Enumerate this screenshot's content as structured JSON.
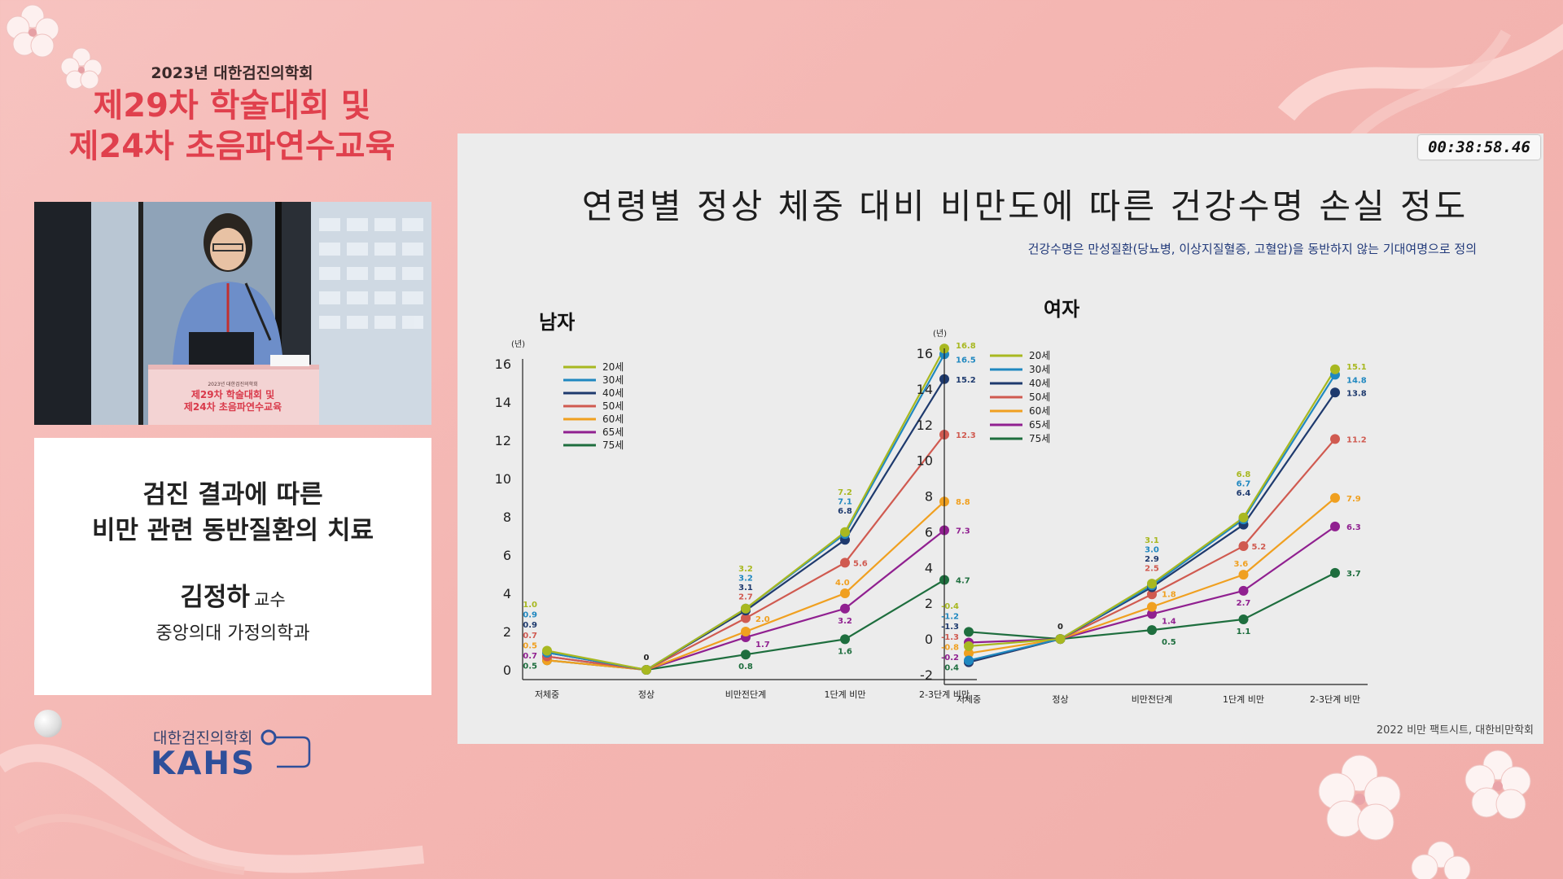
{
  "conference": {
    "year_line": "2023년 대한검진의학회",
    "title_line1": "제29차 학술대회 및",
    "title_line2": "제24차 초음파연수교육"
  },
  "video": {
    "podium_line1": "2023년 대한검진의학회",
    "podium_line2": "제29차 학술대회 및",
    "podium_line3": "제24차 초음파연수교육"
  },
  "talk": {
    "title_line1": "검진 결과에 따른",
    "title_line2": "비만 관련 동반질환의 치료",
    "speaker_name": "김정하",
    "speaker_role": "교수",
    "speaker_dept": "중앙의대 가정의학과"
  },
  "logo": {
    "korean": "대한검진의학회",
    "english": "KAHS"
  },
  "timer": "00:38:58.46",
  "slide": {
    "title": "연령별 정상 체중 대비 비만도에 따른 건강수명 손실 정도",
    "note": "건강수명은 만성질환(당뇨병, 이상지질혈증, 고혈압)을 동반하지 않는 기대여명으로 정의",
    "source": "2022 비만 팩트시트, 대한비만학회"
  },
  "colors": {
    "20세": "#a8b820",
    "30세": "#2088c0",
    "40세": "#1e3a6e",
    "50세": "#d05a50",
    "60세": "#f0a020",
    "65세": "#902090",
    "75세": "#1e6e3e"
  },
  "chart_data": [
    {
      "type": "line",
      "title": "남자",
      "unit": "(년)",
      "categories": [
        "저체중",
        "정상",
        "비만전단계",
        "1단계 비만",
        "2-3단계 비만"
      ],
      "ylim": [
        0,
        16
      ],
      "yticks": [
        0,
        2,
        4,
        6,
        8,
        10,
        12,
        14,
        16
      ],
      "legend": "top-left",
      "grid": false,
      "series": [
        {
          "name": "20세",
          "values": [
            1.0,
            0,
            3.2,
            7.2,
            16.8
          ]
        },
        {
          "name": "30세",
          "values": [
            0.9,
            0,
            3.2,
            7.1,
            16.5
          ]
        },
        {
          "name": "40세",
          "values": [
            0.9,
            0,
            3.1,
            6.8,
            15.2
          ]
        },
        {
          "name": "50세",
          "values": [
            0.7,
            0,
            2.7,
            5.6,
            12.3
          ]
        },
        {
          "name": "60세",
          "values": [
            0.5,
            0,
            2.0,
            4.0,
            8.8
          ]
        },
        {
          "name": "65세",
          "values": [
            0.7,
            0,
            1.7,
            3.2,
            7.3
          ]
        },
        {
          "name": "75세",
          "values": [
            0.5,
            0,
            0.8,
            1.6,
            4.7
          ]
        }
      ]
    },
    {
      "type": "line",
      "title": "여자",
      "unit": "(년)",
      "categories": [
        "저체중",
        "정상",
        "비만전단계",
        "1단계 비만",
        "2-3단계 비만"
      ],
      "ylim": [
        -2,
        16
      ],
      "yticks": [
        -2,
        0,
        2,
        4,
        6,
        8,
        10,
        12,
        14,
        16
      ],
      "legend": "top-left",
      "grid": false,
      "series": [
        {
          "name": "20세",
          "values": [
            -0.4,
            0,
            3.1,
            6.8,
            15.1
          ]
        },
        {
          "name": "30세",
          "values": [
            -1.2,
            0,
            3.0,
            6.7,
            14.8
          ]
        },
        {
          "name": "40세",
          "values": [
            -1.3,
            0,
            2.9,
            6.4,
            13.8
          ]
        },
        {
          "name": "50세",
          "values": [
            -1.3,
            0,
            2.5,
            5.2,
            11.2
          ]
        },
        {
          "name": "60세",
          "values": [
            -0.8,
            0,
            1.8,
            3.6,
            7.9
          ]
        },
        {
          "name": "65세",
          "values": [
            -0.2,
            0,
            1.4,
            2.7,
            6.3
          ]
        },
        {
          "name": "75세",
          "values": [
            0.4,
            0,
            0.5,
            1.1,
            3.7
          ]
        }
      ]
    }
  ]
}
